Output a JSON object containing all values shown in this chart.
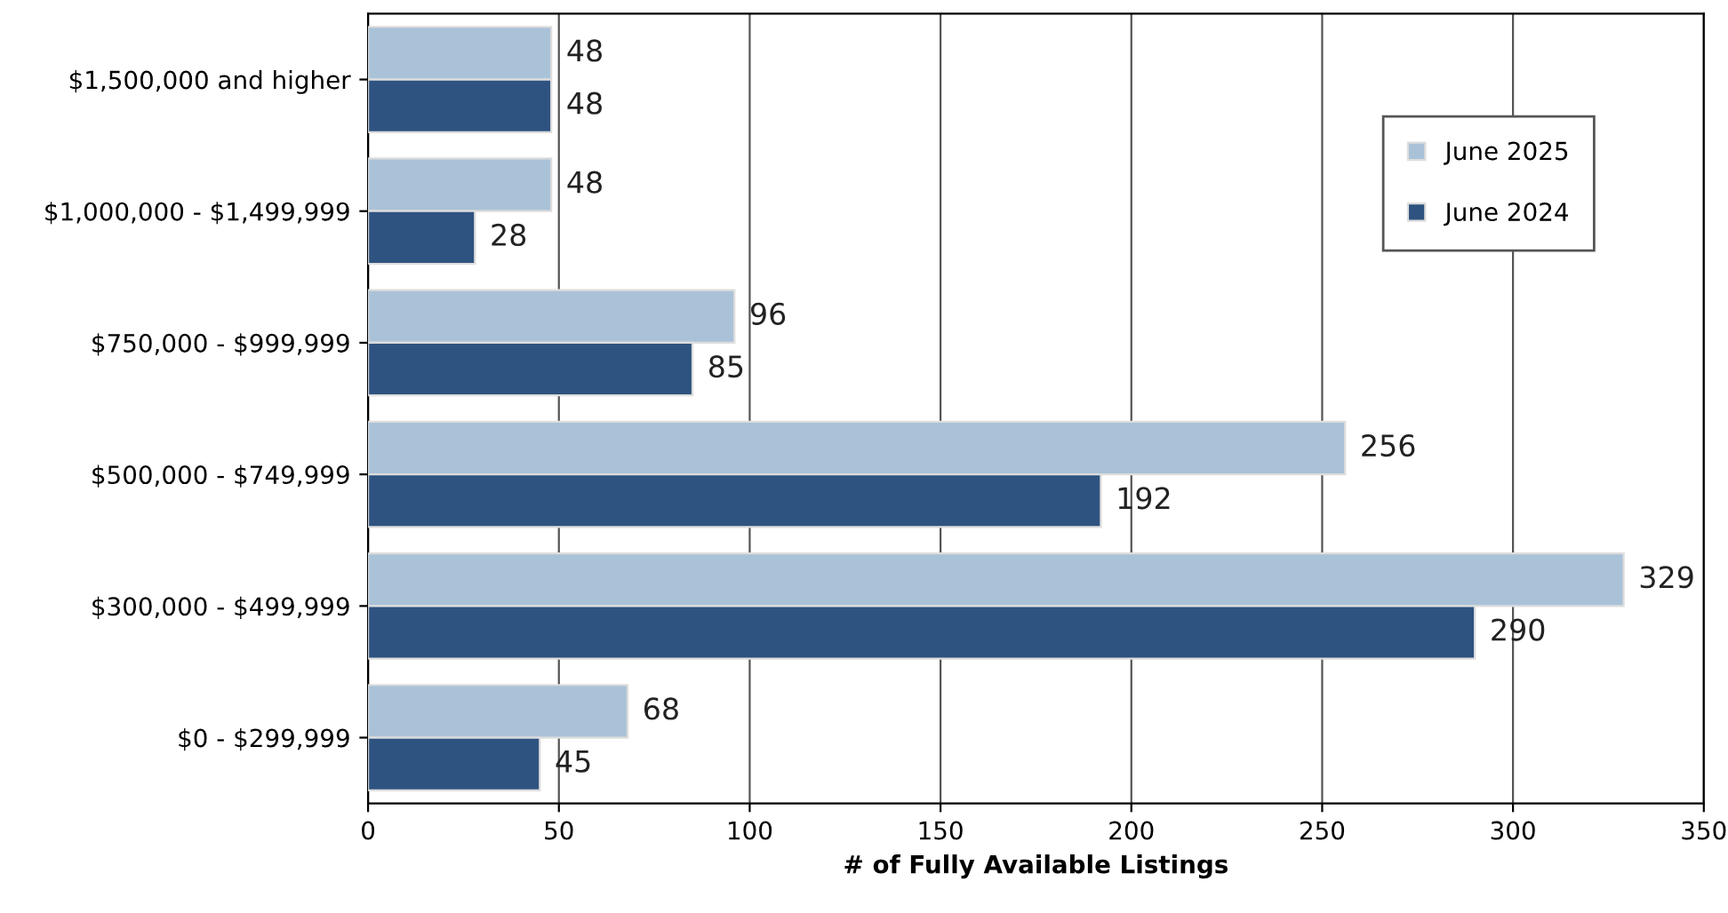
{
  "chart_data": {
    "type": "bar",
    "orientation": "horizontal",
    "xlabel": "# of Fully Available Listings",
    "categories": [
      "$1,500,000 and higher",
      "$1,000,000 - $1,499,999",
      "$750,000 - $999,999",
      "$500,000 - $749,999",
      "$300,000 - $499,999",
      "$0 - $299,999"
    ],
    "series": [
      {
        "name": "June 2025",
        "color": "#aac2d8",
        "values": [
          48,
          48,
          96,
          256,
          329,
          68
        ]
      },
      {
        "name": "June 2024",
        "color": "#2e5380",
        "values": [
          48,
          28,
          85,
          192,
          290,
          45
        ]
      }
    ],
    "xlim": [
      0,
      350
    ],
    "xticks": [
      0,
      50,
      100,
      150,
      200,
      250,
      300,
      350
    ],
    "grid": "x",
    "legend": "top right",
    "data_labels": true
  }
}
